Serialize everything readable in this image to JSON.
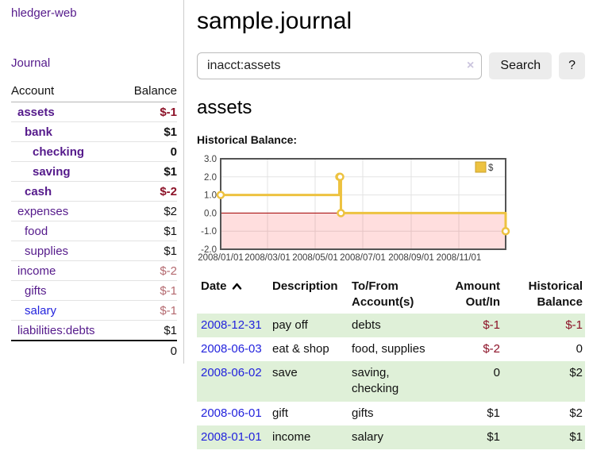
{
  "brand": "hledger-web",
  "nav": {
    "journal": "Journal"
  },
  "sidebar": {
    "col_account": "Account",
    "col_balance": "Balance",
    "accounts": [
      {
        "name": "assets",
        "indent": 0,
        "bold": true,
        "blue": false,
        "balance": "$-1",
        "balance_style": "neg-strong"
      },
      {
        "name": "bank",
        "indent": 1,
        "bold": true,
        "blue": false,
        "balance": "$1",
        "balance_style": ""
      },
      {
        "name": "checking",
        "indent": 2,
        "bold": true,
        "blue": false,
        "balance": "0",
        "balance_style": ""
      },
      {
        "name": "saving",
        "indent": 2,
        "bold": true,
        "blue": false,
        "balance": "$1",
        "balance_style": ""
      },
      {
        "name": "cash",
        "indent": 1,
        "bold": true,
        "blue": false,
        "balance": "$-2",
        "balance_style": "neg-strong"
      },
      {
        "name": "expenses",
        "indent": 0,
        "bold": false,
        "blue": false,
        "balance": "$2",
        "balance_style": ""
      },
      {
        "name": "food",
        "indent": 1,
        "bold": false,
        "blue": false,
        "balance": "$1",
        "balance_style": ""
      },
      {
        "name": "supplies",
        "indent": 1,
        "bold": false,
        "blue": false,
        "balance": "$1",
        "balance_style": ""
      },
      {
        "name": "income",
        "indent": 0,
        "bold": false,
        "blue": false,
        "balance": "$-2",
        "balance_style": "neg-muted"
      },
      {
        "name": "gifts",
        "indent": 1,
        "bold": false,
        "blue": false,
        "balance": "$-1",
        "balance_style": "neg-muted"
      },
      {
        "name": "salary",
        "indent": 1,
        "bold": false,
        "blue": true,
        "balance": "$-1",
        "balance_style": "neg-muted"
      },
      {
        "name": "liabilities:debts",
        "indent": 0,
        "bold": false,
        "blue": false,
        "balance": "$1",
        "balance_style": ""
      }
    ],
    "total": "0"
  },
  "main": {
    "title": "sample.journal",
    "search": {
      "value": "inacct:assets",
      "clear": "×",
      "search_label": "Search",
      "help_label": "?"
    },
    "account_title": "assets",
    "chart_title": "Historical Balance:"
  },
  "chart_data": {
    "type": "line",
    "step": true,
    "legend": [
      {
        "label": "$",
        "color": "#edc240"
      }
    ],
    "x_ticks": [
      "2008/01/01",
      "2008/03/01",
      "2008/05/01",
      "2008/07/01",
      "2008/09/01",
      "2008/11/01"
    ],
    "y_ticks": [
      3.0,
      2.0,
      1.0,
      0.0,
      -1.0,
      -2.0
    ],
    "ylim": [
      -2,
      3
    ],
    "x_start": "2008-01-01",
    "x_end": "2008-12-31",
    "points": [
      {
        "date": "2008-01-01",
        "value": 1
      },
      {
        "date": "2008-06-01",
        "value": 2
      },
      {
        "date": "2008-06-02",
        "value": 2
      },
      {
        "date": "2008-06-03",
        "value": 0
      },
      {
        "date": "2008-12-31",
        "value": -1
      }
    ],
    "colors": {
      "line": "#edc240",
      "marker_fill": "#ffffff",
      "zero_line": "#a40000",
      "negative_region": "rgba(255,0,0,0.13)",
      "grid": "#e3e3e3",
      "border": "#545454",
      "legend_border": "#caa22e"
    }
  },
  "register": {
    "headers": {
      "date": "Date",
      "description": "Description",
      "accounts": "To/From Account(s)",
      "amount": "Amount Out/In",
      "balance": "Historical Balance"
    },
    "rows": [
      {
        "date": "2008-12-31",
        "description": "pay off",
        "accounts": "debts",
        "amount": "$-1",
        "balance": "$-1",
        "amount_negative": true,
        "balance_negative": true,
        "highlight": true
      },
      {
        "date": "2008-06-03",
        "description": "eat & shop",
        "accounts": "food, supplies",
        "amount": "$-2",
        "balance": "0",
        "amount_negative": true,
        "balance_negative": false,
        "highlight": false
      },
      {
        "date": "2008-06-02",
        "description": "save",
        "accounts": "saving, checking",
        "amount": "0",
        "balance": "$2",
        "amount_negative": false,
        "balance_negative": false,
        "highlight": true
      },
      {
        "date": "2008-06-01",
        "description": "gift",
        "accounts": "gifts",
        "amount": "$1",
        "balance": "$2",
        "amount_negative": false,
        "balance_negative": false,
        "highlight": false
      },
      {
        "date": "2008-01-01",
        "description": "income",
        "accounts": "salary",
        "amount": "$1",
        "balance": "$1",
        "amount_negative": false,
        "balance_negative": false,
        "highlight": true
      }
    ]
  }
}
